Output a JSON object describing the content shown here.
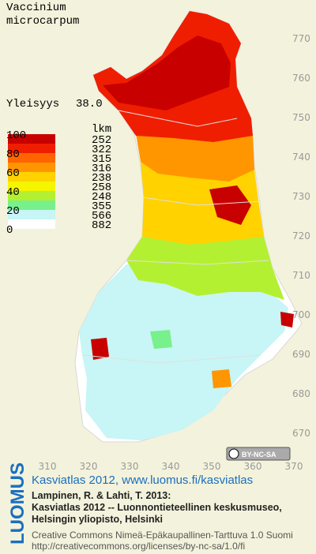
{
  "title_lines": [
    "Vaccinium",
    "microcarpum"
  ],
  "frequency": {
    "label": "Yleisyys",
    "value": "38.0"
  },
  "legend": {
    "count_header": "lkm",
    "scale": [
      100,
      80,
      60,
      40,
      20,
      0
    ],
    "classes": [
      {
        "color": "#c80000",
        "count": 252
      },
      {
        "color": "#f01e00",
        "count": 322
      },
      {
        "color": "#ff6400",
        "count": 315
      },
      {
        "color": "#ff9600",
        "count": 316
      },
      {
        "color": "#ffd200",
        "count": 238
      },
      {
        "color": "#f5f500",
        "count": 258
      },
      {
        "color": "#b4f032",
        "count": 248
      },
      {
        "color": "#78f08c",
        "count": 355
      },
      {
        "color": "#c8f5f5",
        "count": 566
      },
      {
        "color": "#ffffff",
        "count": 882
      }
    ]
  },
  "x_ticks": [
    310,
    320,
    330,
    340,
    350,
    360,
    370
  ],
  "y_ticks": [
    670,
    680,
    690,
    700,
    710,
    720,
    730,
    740,
    750,
    760,
    770
  ],
  "license_badge": "BY-NC-SA",
  "logo": "LUOMUS",
  "footer": {
    "link": "Kasviatlas 2012, www.luomus.fi/kasviatlas",
    "citation": [
      "Lampinen, R. & Lahti, T. 2013:",
      "Kasviatlas 2012 -- Luonnontieteellinen keskusmuseo,",
      "Helsingin yliopisto, Helsinki"
    ],
    "license": [
      "Creative Commons Nimeä-Epäkaupallinen-Tarttuva 1.0 Suomi",
      "http://creativecommons.org/licenses/by-nc-sa/1.0/fi"
    ]
  }
}
